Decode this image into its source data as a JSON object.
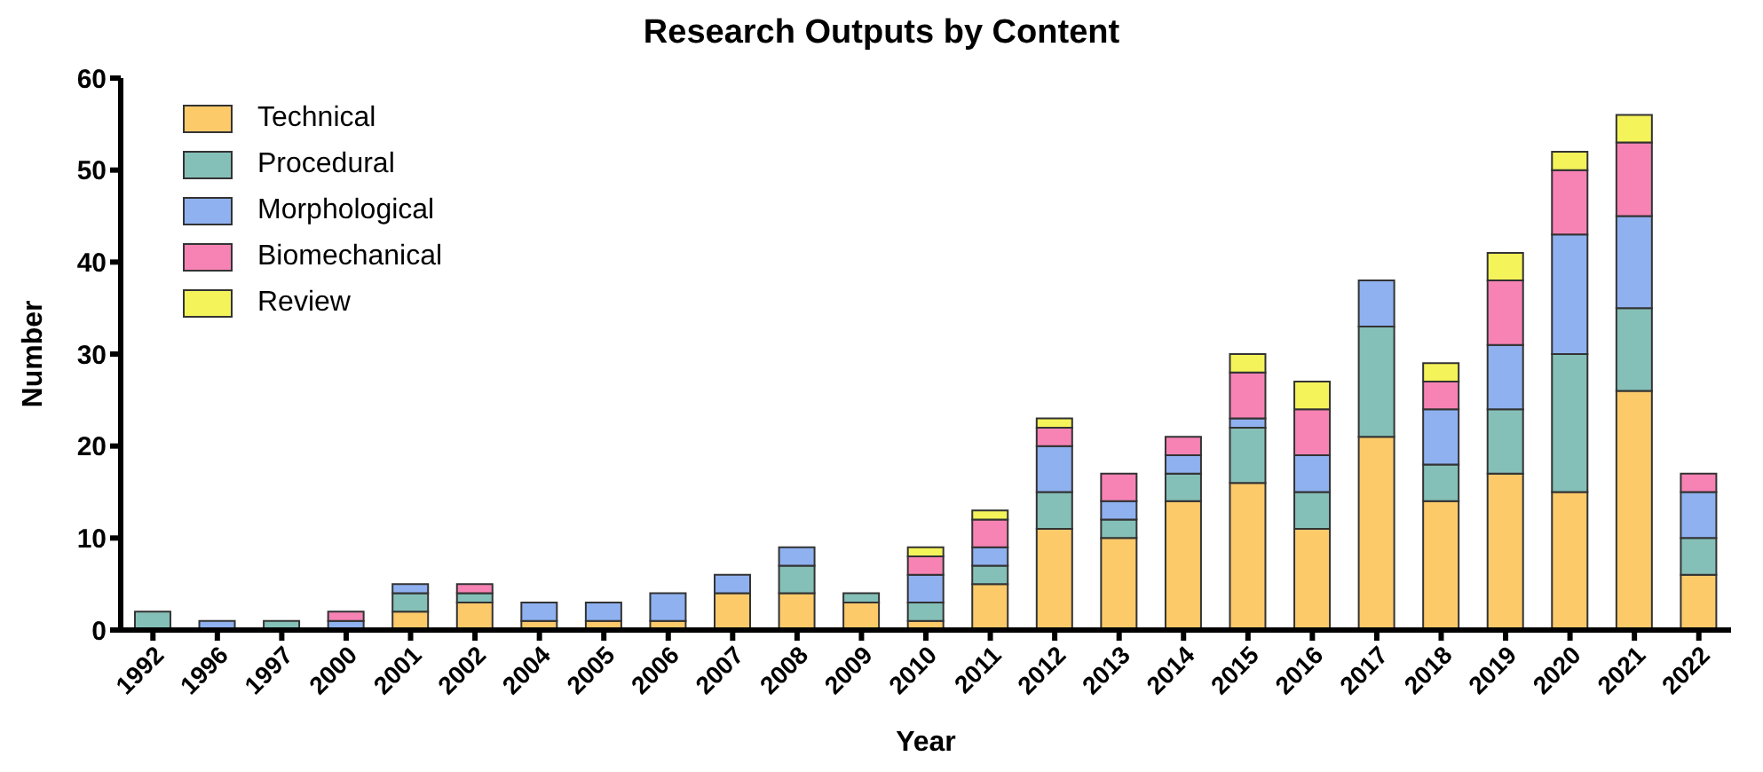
{
  "chart_data": {
    "type": "bar",
    "title": "Research Outputs by Content",
    "xlabel": "Year",
    "ylabel": "Number",
    "categories": [
      "1992",
      "1996",
      "1997",
      "2000",
      "2001",
      "2002",
      "2004",
      "2005",
      "2006",
      "2007",
      "2008",
      "2009",
      "2010",
      "2011",
      "2012",
      "2013",
      "2014",
      "2015",
      "2016",
      "2017",
      "2018",
      "2019",
      "2020",
      "2021",
      "2022"
    ],
    "series": [
      {
        "name": "Technical",
        "color": "#fdca6a",
        "values": [
          0,
          0,
          0,
          0,
          2,
          3,
          1,
          1,
          1,
          4,
          4,
          3,
          1,
          5,
          11,
          10,
          14,
          16,
          11,
          21,
          14,
          17,
          15,
          26,
          6
        ]
      },
      {
        "name": "Procedural",
        "color": "#85c0b8",
        "values": [
          2,
          0,
          1,
          0,
          2,
          1,
          0,
          0,
          0,
          0,
          3,
          1,
          2,
          2,
          4,
          2,
          3,
          6,
          4,
          12,
          4,
          7,
          15,
          9,
          4
        ]
      },
      {
        "name": "Morphological",
        "color": "#8fb1f0",
        "values": [
          0,
          1,
          0,
          1,
          1,
          0,
          2,
          2,
          3,
          2,
          2,
          0,
          3,
          2,
          5,
          2,
          2,
          1,
          4,
          5,
          6,
          7,
          13,
          10,
          5
        ]
      },
      {
        "name": "Biomechanical",
        "color": "#f783b5",
        "values": [
          0,
          0,
          0,
          1,
          0,
          1,
          0,
          0,
          0,
          0,
          0,
          0,
          2,
          3,
          2,
          3,
          2,
          5,
          5,
          0,
          3,
          7,
          7,
          8,
          2
        ]
      },
      {
        "name": "Review",
        "color": "#f5f35a",
        "values": [
          0,
          0,
          0,
          0,
          0,
          0,
          0,
          0,
          0,
          0,
          0,
          0,
          1,
          1,
          1,
          0,
          0,
          2,
          3,
          0,
          2,
          3,
          2,
          3,
          0
        ]
      }
    ],
    "stacked": true,
    "ylim": [
      0,
      60
    ],
    "yticks": [
      0,
      10,
      20,
      30,
      40,
      50,
      60
    ],
    "grid": false,
    "legend": "top left"
  }
}
